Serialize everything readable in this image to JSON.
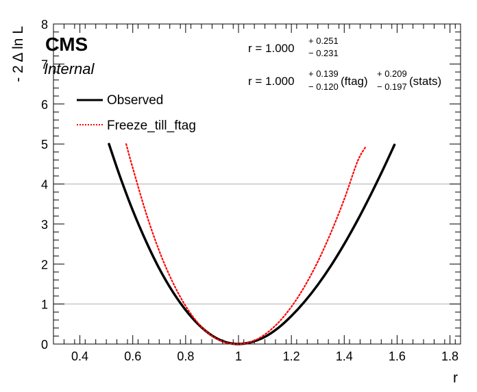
{
  "chart_data": {
    "type": "line",
    "title": "",
    "xlabel": "r",
    "ylabel": "- 2 Δ ln L",
    "xlim": [
      0.3,
      1.84
    ],
    "ylim": [
      0,
      8
    ],
    "grid": "horizontal lines at y = 1 and y = 4",
    "xticks": [
      0.4,
      0.6,
      0.8,
      1,
      1.2,
      1.4,
      1.6,
      1.8
    ],
    "xtick_labels": [
      "0.4",
      "0.6",
      "0.8",
      "1",
      "1.2",
      "1.4",
      "1.6",
      "1.8"
    ],
    "yticks": [
      0,
      1,
      2,
      3,
      4,
      5,
      6,
      7,
      8
    ],
    "ytick_labels": [
      "0",
      "1",
      "2",
      "3",
      "4",
      "5",
      "6",
      "7",
      "8"
    ],
    "hlines": [
      1,
      4
    ],
    "experiment_label": "CMS",
    "status_label": "Internal",
    "legend": {
      "placement": "top-left",
      "entries": [
        "Observed",
        "Freeze_till_ftag"
      ]
    },
    "series": [
      {
        "name": "Observed",
        "color": "#000000",
        "style": "solid",
        "x": [
          0.51,
          0.55,
          0.6,
          0.65,
          0.7,
          0.75,
          0.8,
          0.85,
          0.9,
          0.95,
          1.0,
          1.05,
          1.1,
          1.15,
          1.2,
          1.25,
          1.3,
          1.35,
          1.4,
          1.45,
          1.5,
          1.55,
          1.59
        ],
        "y": [
          5.0,
          4.22,
          3.34,
          2.57,
          1.89,
          1.32,
          0.85,
          0.48,
          0.21,
          0.05,
          0.0,
          0.05,
          0.18,
          0.4,
          0.7,
          1.06,
          1.48,
          1.96,
          2.5,
          3.09,
          3.73,
          4.41,
          4.98
        ]
      },
      {
        "name": "Freeze_till_ftag",
        "color": "#ff0000",
        "style": "dotted",
        "x": [
          0.575,
          0.6,
          0.65,
          0.7,
          0.75,
          0.8,
          0.85,
          0.9,
          0.95,
          1.0,
          1.05,
          1.1,
          1.15,
          1.2,
          1.25,
          1.3,
          1.35,
          1.4,
          1.45,
          1.48
        ],
        "y": [
          5.0,
          4.4,
          3.28,
          2.33,
          1.56,
          0.95,
          0.5,
          0.2,
          0.04,
          0.0,
          0.06,
          0.24,
          0.53,
          0.93,
          1.44,
          2.06,
          2.79,
          3.62,
          4.56,
          4.92
        ]
      }
    ],
    "annotations": {
      "line1": {
        "prefix": "r = 1.000",
        "up": "+ 0.251",
        "down": "− 0.231"
      },
      "line2": {
        "prefix": "r = 1.000",
        "up1": "+ 0.139",
        "down1": "− 0.120",
        "label1": "(ftag)",
        "up2": "+ 0.209",
        "down2": "− 0.197",
        "label2": "(stats)"
      }
    }
  }
}
